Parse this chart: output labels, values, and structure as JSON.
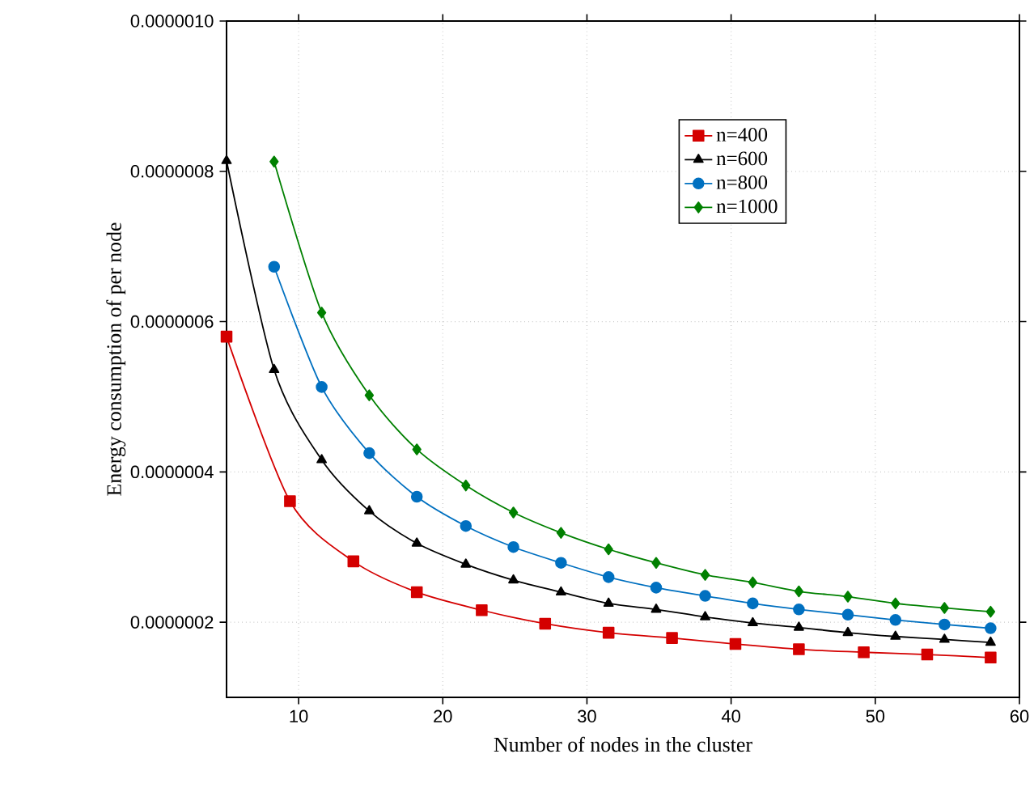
{
  "chart_data": {
    "type": "line",
    "xlabel": "Number of nodes in the cluster",
    "ylabel": "Energy consumption of per node",
    "xlim": [
      5,
      60
    ],
    "xticks": [
      10,
      20,
      30,
      40,
      50,
      60
    ],
    "ylim": [
      1e-07,
      1e-06
    ],
    "yticks": [
      {
        "value": 2e-07,
        "label": "0.0000002"
      },
      {
        "value": 4e-07,
        "label": "0.0000004"
      },
      {
        "value": 6e-07,
        "label": "0.0000006"
      },
      {
        "value": 8e-07,
        "label": "0.0000008"
      },
      {
        "value": 1e-06,
        "label": "0.0000010"
      }
    ],
    "grid": true,
    "legend": "top right",
    "line_style": "solid",
    "series": [
      {
        "name": "n=400",
        "color": "#d40000",
        "marker": "square",
        "x": [
          5,
          9.4,
          13.8,
          18.2,
          22.7,
          27.1,
          31.5,
          35.9,
          40.3,
          44.7,
          49.2,
          53.6,
          58
        ],
        "values": [
          5.8e-07,
          3.61e-07,
          2.81e-07,
          2.4e-07,
          2.16e-07,
          1.98e-07,
          1.86e-07,
          1.79e-07,
          1.71e-07,
          1.64e-07,
          1.6e-07,
          1.57e-07,
          1.53e-07
        ]
      },
      {
        "name": "n=600",
        "color": "#000000",
        "marker": "triangle",
        "x": [
          5,
          8.3,
          11.6,
          14.9,
          18.2,
          21.6,
          24.9,
          28.2,
          31.5,
          34.8,
          38.2,
          41.5,
          44.7,
          48.1,
          51.4,
          54.8,
          58
        ],
        "values": [
          8.14e-07,
          5.36e-07,
          4.16e-07,
          3.48e-07,
          3.05e-07,
          2.77e-07,
          2.56e-07,
          2.4e-07,
          2.25e-07,
          2.17e-07,
          2.07e-07,
          1.99e-07,
          1.93e-07,
          1.86e-07,
          1.81e-07,
          1.77e-07,
          1.73e-07
        ]
      },
      {
        "name": "n=800",
        "color": "#0070c0",
        "marker": "circle",
        "x": [
          8.3,
          11.6,
          14.9,
          18.2,
          21.6,
          24.9,
          28.2,
          31.5,
          34.8,
          38.2,
          41.5,
          44.7,
          48.1,
          51.4,
          54.8,
          58
        ],
        "values": [
          6.73e-07,
          5.13e-07,
          4.25e-07,
          3.67e-07,
          3.28e-07,
          3e-07,
          2.79e-07,
          2.6e-07,
          2.46e-07,
          2.35e-07,
          2.25e-07,
          2.17e-07,
          2.1e-07,
          2.03e-07,
          1.97e-07,
          1.92e-07
        ]
      },
      {
        "name": "n=1000",
        "color": "#008000",
        "marker": "diamond",
        "x": [
          8.3,
          11.6,
          14.9,
          18.2,
          21.6,
          24.9,
          28.2,
          31.5,
          34.8,
          38.2,
          41.5,
          44.7,
          48.1,
          51.4,
          54.8,
          58
        ],
        "values": [
          8.13e-07,
          6.12e-07,
          5.02e-07,
          4.3e-07,
          3.82e-07,
          3.46e-07,
          3.19e-07,
          2.97e-07,
          2.79e-07,
          2.63e-07,
          2.53e-07,
          2.41e-07,
          2.34e-07,
          2.25e-07,
          2.19e-07,
          2.14e-07
        ]
      }
    ]
  }
}
